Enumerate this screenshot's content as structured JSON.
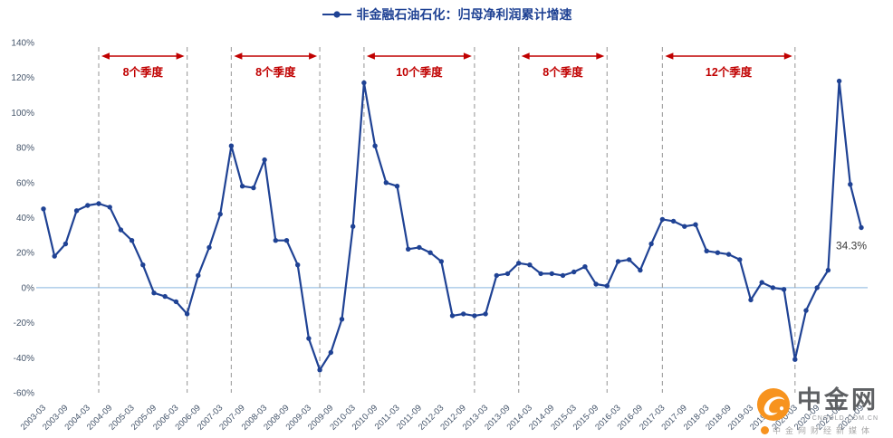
{
  "title": {
    "legend_label": "非金融石油石化：归母净利润累计增速"
  },
  "chart_data": {
    "type": "line",
    "title": "非金融石油石化：归母净利润累计增速",
    "legend_position": "top-center",
    "grid": false,
    "ylim": [
      -60,
      140
    ],
    "y_ticks": [
      140,
      120,
      100,
      80,
      60,
      40,
      20,
      0,
      -20,
      -40,
      -60
    ],
    "x_tick_every": 2,
    "x": [
      "2003-03",
      "2003-06",
      "2003-09",
      "2003-12",
      "2004-03",
      "2004-06",
      "2004-09",
      "2004-12",
      "2005-03",
      "2005-06",
      "2005-09",
      "2005-12",
      "2006-03",
      "2006-06",
      "2006-09",
      "2006-12",
      "2007-03",
      "2007-06",
      "2007-09",
      "2007-12",
      "2008-03",
      "2008-06",
      "2008-09",
      "2008-12",
      "2009-03",
      "2009-06",
      "2009-09",
      "2009-12",
      "2010-03",
      "2010-06",
      "2010-09",
      "2010-12",
      "2011-03",
      "2011-06",
      "2011-09",
      "2011-12",
      "2012-03",
      "2012-06",
      "2012-09",
      "2012-12",
      "2013-03",
      "2013-06",
      "2013-09",
      "2013-12",
      "2014-03",
      "2014-06",
      "2014-09",
      "2014-12",
      "2015-03",
      "2015-06",
      "2015-09",
      "2015-12",
      "2016-03",
      "2016-06",
      "2016-09",
      "2016-12",
      "2017-03",
      "2017-06",
      "2017-09",
      "2017-12",
      "2018-03",
      "2018-06",
      "2018-09",
      "2018-12",
      "2019-03",
      "2019-06",
      "2019-09",
      "2019-12",
      "2020-03",
      "2020-06",
      "2020-09",
      "2020-12",
      "2021-03",
      "2021-06",
      "2021-09"
    ],
    "values": [
      45,
      18,
      25,
      44,
      47,
      48,
      46,
      33,
      27,
      13,
      -3,
      -5,
      -8,
      -15,
      7,
      23,
      42,
      81,
      58,
      57,
      73,
      27,
      27,
      13,
      -29,
      -47,
      -37,
      -18,
      35,
      117,
      81,
      60,
      58,
      22,
      23,
      20,
      15,
      -16,
      -15,
      -16,
      -15,
      7,
      8,
      14,
      13,
      8,
      8,
      7,
      9,
      12,
      2,
      1,
      15,
      16,
      10,
      25,
      39,
      38,
      35,
      36,
      21,
      20,
      19,
      16,
      -7,
      3,
      0,
      -1,
      -41,
      -13,
      0,
      10,
      118,
      59,
      34.3
    ],
    "annotation": {
      "x": "2021-09",
      "value": 34.3,
      "text": "34.3%"
    },
    "cycles": [
      {
        "from": "2004-06",
        "to": "2006-06",
        "label": "8个季度"
      },
      {
        "from": "2007-06",
        "to": "2009-06",
        "label": "8个季度"
      },
      {
        "from": "2010-06",
        "to": "2012-12",
        "label": "10个季度"
      },
      {
        "from": "2013-12",
        "to": "2015-12",
        "label": "8个季度"
      },
      {
        "from": "2017-03",
        "to": "2020-03",
        "label": "12个季度"
      }
    ],
    "colors": {
      "line": "#1f4294",
      "marker": "#1f4294",
      "zero_line": "#9dc3e6",
      "divider": "#a6a6a6",
      "cycle_arrow": "#c00000",
      "axis_text": "#44546a",
      "annotation_text": "#3a3a3a"
    }
  },
  "watermark": {
    "name": "中金网",
    "domain": "CNGOLD.COM.CN",
    "tagline": "中金网财经新媒体",
    "brand_color": "#f7931e"
  }
}
